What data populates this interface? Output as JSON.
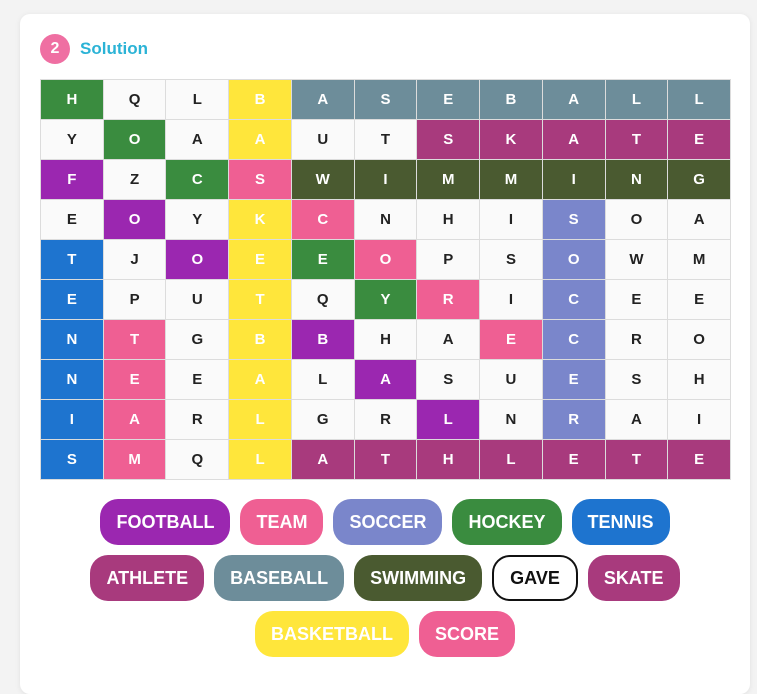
{
  "header": {
    "step": "2",
    "title": "Solution"
  },
  "colors": {
    "football": "#9b27b0",
    "team": "#ef5f93",
    "soccer": "#7a86cb",
    "hockey": "#3a8c3f",
    "tennis": "#1e74cf",
    "athlete": "#a83a7d",
    "baseball": "#6d8d9a",
    "swimming": "#4a5a30",
    "basketball": "#ffe63b",
    "score": "#ef5f93"
  },
  "grid": {
    "rows": [
      [
        "H",
        "Q",
        "L",
        "B",
        "A",
        "S",
        "E",
        "B",
        "A",
        "L",
        "L"
      ],
      [
        "Y",
        "O",
        "A",
        "A",
        "U",
        "T",
        "S",
        "K",
        "A",
        "T",
        "E"
      ],
      [
        "F",
        "Z",
        "C",
        "S",
        "W",
        "I",
        "M",
        "M",
        "I",
        "N",
        "G"
      ],
      [
        "E",
        "O",
        "Y",
        "K",
        "C",
        "N",
        "H",
        "I",
        "S",
        "O",
        "A"
      ],
      [
        "T",
        "J",
        "O",
        "E",
        "E",
        "O",
        "P",
        "S",
        "O",
        "W",
        "M"
      ],
      [
        "E",
        "P",
        "U",
        "T",
        "Q",
        "Y",
        "R",
        "I",
        "C",
        "E",
        "E"
      ],
      [
        "N",
        "T",
        "G",
        "B",
        "B",
        "H",
        "A",
        "E",
        "C",
        "R",
        "O"
      ],
      [
        "N",
        "E",
        "E",
        "A",
        "L",
        "A",
        "S",
        "U",
        "E",
        "S",
        "H"
      ],
      [
        "I",
        "A",
        "R",
        "L",
        "G",
        "R",
        "L",
        "N",
        "R",
        "A",
        "I"
      ],
      [
        "S",
        "M",
        "Q",
        "L",
        "A",
        "T",
        "H",
        "L",
        "E",
        "T",
        "E"
      ]
    ],
    "highlights": [
      [
        "hockey",
        "",
        "",
        "basketball",
        "baseball",
        "baseball",
        "baseball",
        "baseball",
        "baseball",
        "baseball",
        "baseball"
      ],
      [
        "",
        "hockey",
        "",
        "basketball",
        "",
        "",
        "athlete",
        "athlete",
        "athlete",
        "athlete",
        "athlete"
      ],
      [
        "football",
        "",
        "hockey",
        "team",
        "swimming",
        "swimming",
        "swimming",
        "swimming",
        "swimming",
        "swimming",
        "swimming"
      ],
      [
        "",
        "football",
        "",
        "basketball",
        "score",
        "",
        "",
        "",
        "soccer",
        "",
        ""
      ],
      [
        "tennis",
        "",
        "football",
        "basketball",
        "hockey",
        "score",
        "",
        "",
        "soccer",
        "",
        ""
      ],
      [
        "tennis",
        "",
        "",
        "basketball",
        "",
        "hockey",
        "score",
        "",
        "soccer",
        "",
        ""
      ],
      [
        "tennis",
        "team",
        "",
        "basketball",
        "football",
        "",
        "",
        "score",
        "soccer",
        "",
        ""
      ],
      [
        "tennis",
        "team",
        "",
        "basketball",
        "",
        "football",
        "",
        "",
        "soccer",
        "",
        ""
      ],
      [
        "tennis",
        "team",
        "",
        "basketball",
        "",
        "",
        "football",
        "",
        "soccer",
        "",
        ""
      ],
      [
        "tennis",
        "team",
        "",
        "basketball",
        "athlete",
        "athlete",
        "athlete",
        "athlete",
        "athlete",
        "athlete",
        "athlete"
      ]
    ]
  },
  "word_rows": [
    [
      {
        "label": "FOOTBALL",
        "color_key": "football"
      },
      {
        "label": "TEAM",
        "color_key": "team"
      },
      {
        "label": "SOCCER",
        "color_key": "soccer"
      },
      {
        "label": "HOCKEY",
        "color_key": "hockey"
      },
      {
        "label": "TENNIS",
        "color_key": "tennis"
      }
    ],
    [
      {
        "label": "ATHLETE",
        "color_key": "athlete"
      },
      {
        "label": "BASEBALL",
        "color_key": "baseball"
      },
      {
        "label": "SWIMMING",
        "color_key": "swimming"
      },
      {
        "label": "GAVE",
        "color_key": ""
      },
      {
        "label": "SKATE",
        "color_key": "athlete"
      }
    ],
    [
      {
        "label": "BASKETBALL",
        "color_key": "basketball"
      },
      {
        "label": "SCORE",
        "color_key": "score"
      }
    ]
  ]
}
